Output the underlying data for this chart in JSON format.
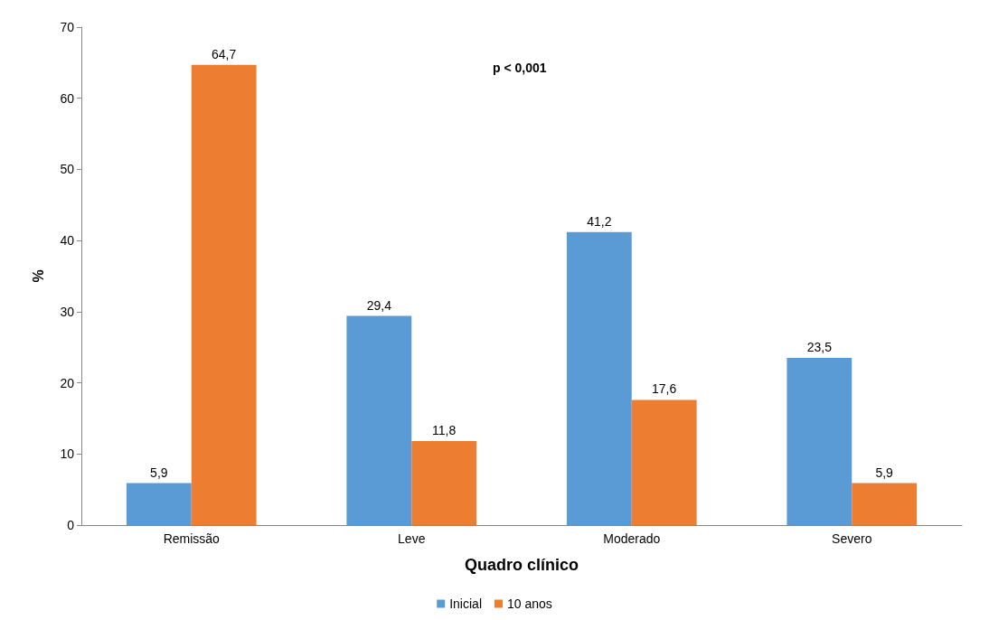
{
  "chart_data": {
    "type": "bar",
    "xlabel": "Quadro clínico",
    "ylabel": "%",
    "categories": [
      "Remissão",
      "Leve",
      "Moderado",
      "Severo"
    ],
    "series": [
      {
        "name": "Inicial",
        "color": "#5b9bd5",
        "values": [
          5.9,
          29.4,
          41.2,
          23.5
        ],
        "value_labels": [
          "5,9",
          "29,4",
          "41,2",
          "23,5"
        ]
      },
      {
        "name": "10 anos",
        "color": "#ed7d31",
        "values": [
          64.7,
          11.8,
          17.6,
          5.9
        ],
        "value_labels": [
          "64,7",
          "11,8",
          "17,6",
          "5,9"
        ]
      }
    ],
    "ylim": [
      0,
      70
    ],
    "yticks": [
      0,
      10,
      20,
      30,
      40,
      50,
      60,
      70
    ],
    "grid": false,
    "legend": "bottom",
    "annotations": [
      "p < 0,001"
    ]
  }
}
